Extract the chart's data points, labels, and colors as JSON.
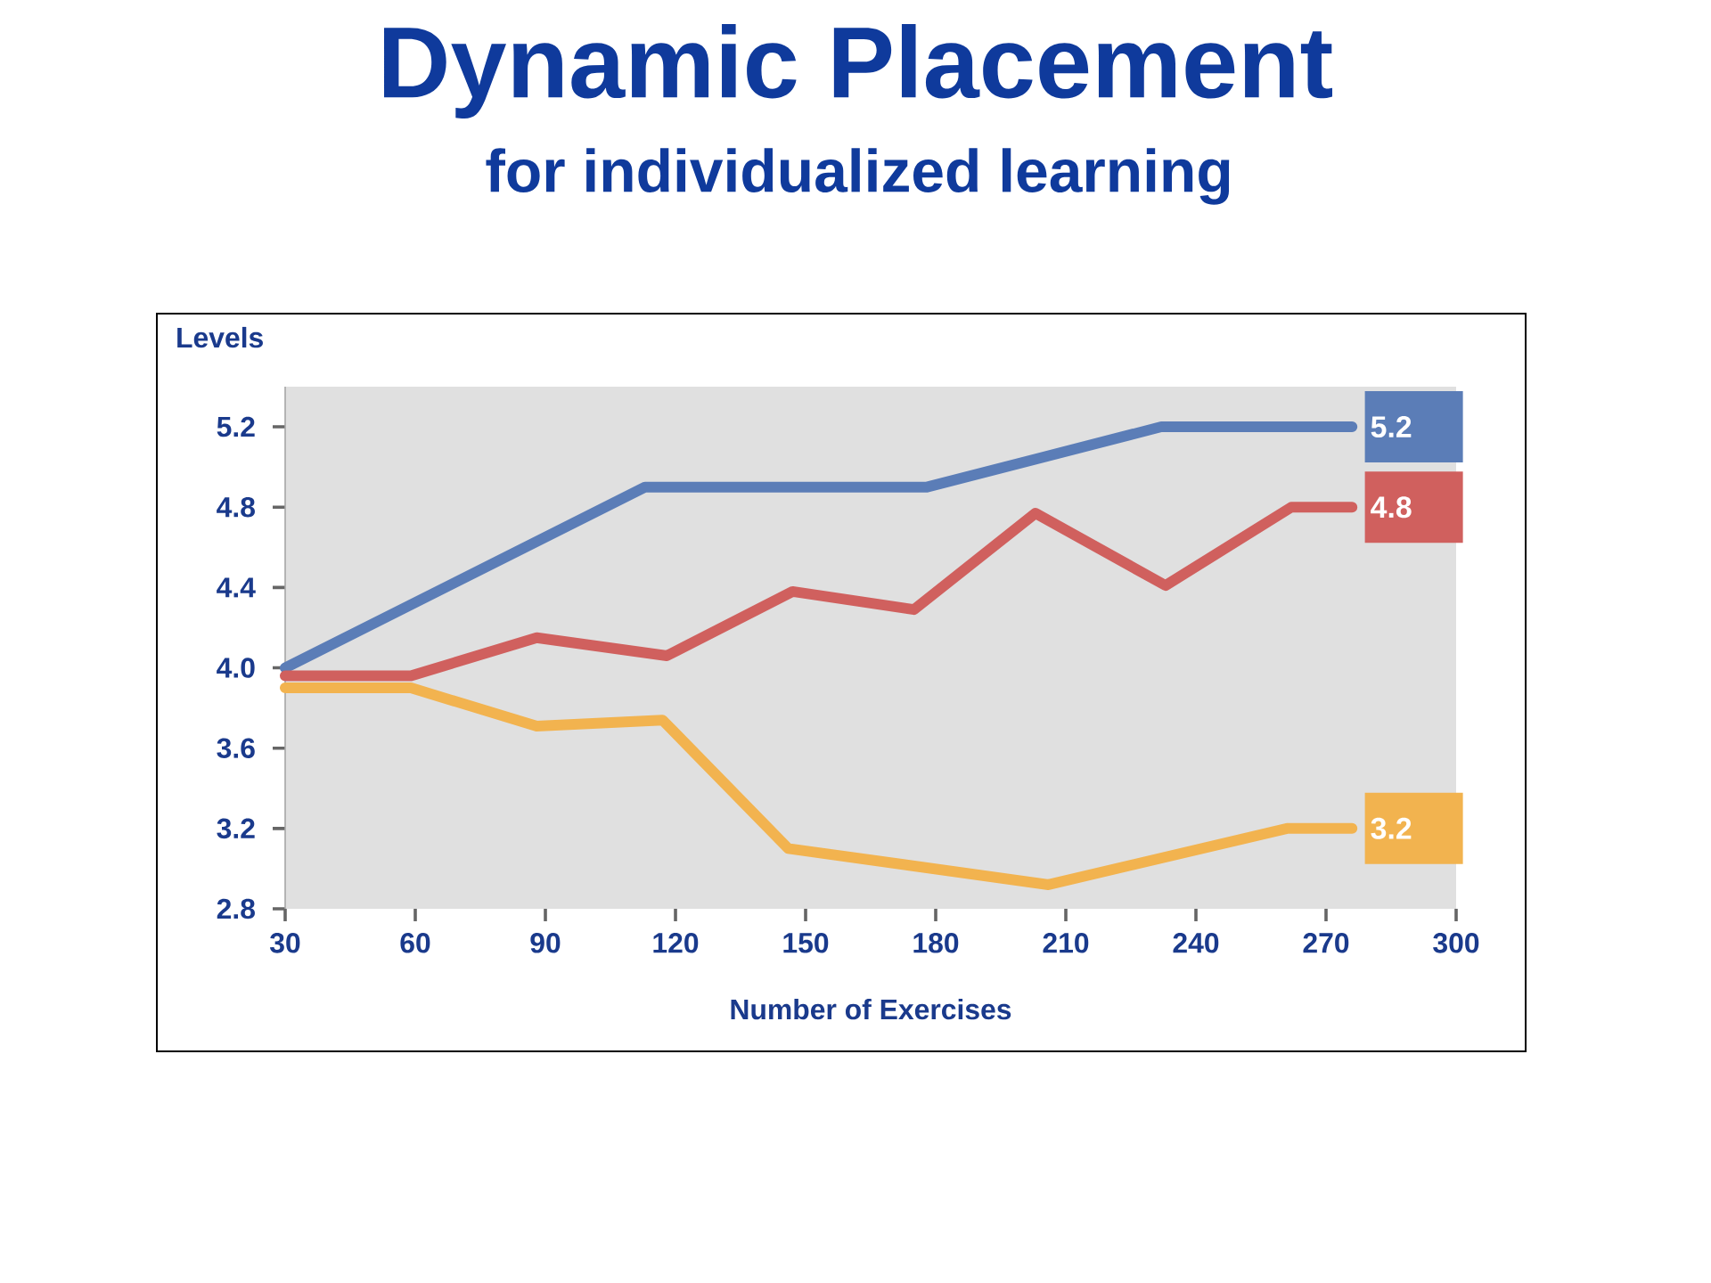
{
  "chart_data": {
    "type": "line",
    "title": "Dynamic Placement",
    "subtitle": "for individualized learning",
    "xlabel": "Number of Exercises",
    "ylabel": "Levels",
    "xlim": [
      30,
      300
    ],
    "xticks": [
      30,
      60,
      90,
      120,
      150,
      180,
      210,
      240,
      270,
      300
    ],
    "ylim": [
      2.8,
      5.4
    ],
    "yticks": [
      2.8,
      3.2,
      3.6,
      {
        "value": 4,
        "label": "4.0"
      },
      4.4,
      4.8,
      5.2
    ],
    "series": [
      {
        "color": "#5b7db7",
        "x": [
          30,
          113,
          178,
          232,
          276
        ],
        "values": [
          4.0,
          4.9,
          4.9,
          5.2,
          5.2
        ],
        "value_labels": [
          null,
          null,
          null,
          null,
          "5.2"
        ]
      },
      {
        "color": "#d0605e",
        "x": [
          30,
          59,
          88,
          118,
          147,
          175,
          203,
          233,
          262,
          276
        ],
        "values": [
          3.96,
          3.96,
          4.15,
          4.06,
          4.38,
          4.29,
          4.77,
          4.41,
          4.8,
          4.8
        ],
        "value_labels": [
          null,
          null,
          null,
          null,
          null,
          null,
          null,
          null,
          null,
          "4.8"
        ]
      },
      {
        "color": "#f2b34f",
        "x": [
          30,
          59,
          88,
          117,
          146,
          206,
          261,
          276
        ],
        "values": [
          3.9,
          3.9,
          3.71,
          3.74,
          3.1,
          2.92,
          3.2,
          3.2
        ],
        "value_labels": [
          null,
          null,
          null,
          null,
          null,
          null,
          null,
          "3.2"
        ]
      }
    ]
  }
}
